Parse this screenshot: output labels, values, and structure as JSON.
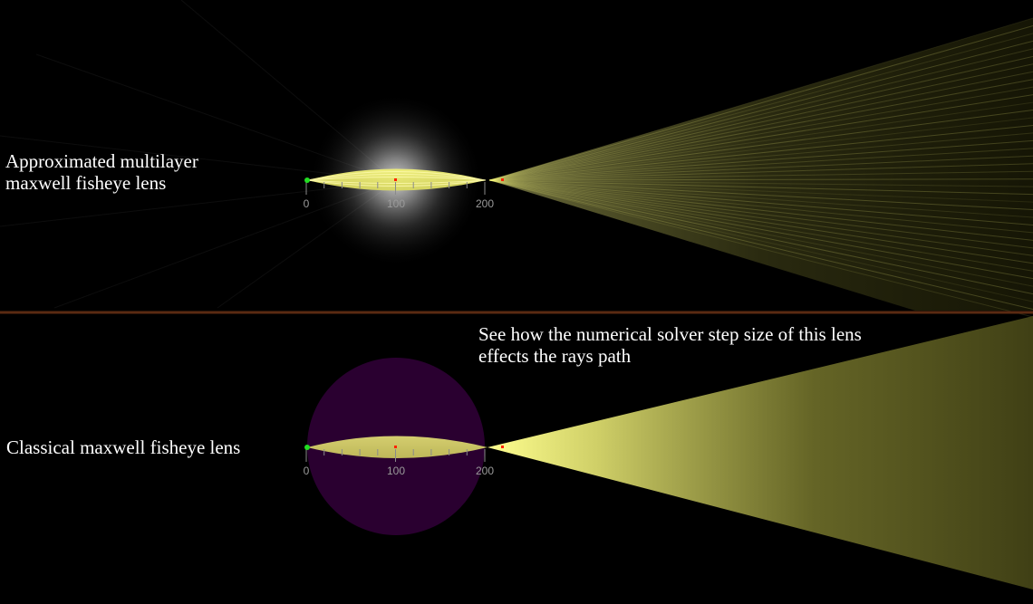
{
  "panels": {
    "top": {
      "label_lines": [
        "Approximated multilayer",
        "maxwell fisheye lens"
      ],
      "axis_ticks": [
        "0",
        "100",
        "200"
      ]
    },
    "bottom": {
      "label_lines": [
        "Classical maxwell fisheye lens"
      ],
      "axis_ticks": [
        "0",
        "100",
        "200"
      ]
    }
  },
  "note": {
    "lines": [
      "See how the numerical solver step size of this lens",
      "effects the rays path"
    ]
  },
  "colors": {
    "background": "#000000",
    "divider": "#5a2a12",
    "ray": "#ffff80",
    "source_point": "#22dd22",
    "focus_point": "#ff2200",
    "lens_fill_classical": "#2a0030",
    "lens_glow": "#ffffff",
    "axis_text": "#9a9a9a"
  }
}
